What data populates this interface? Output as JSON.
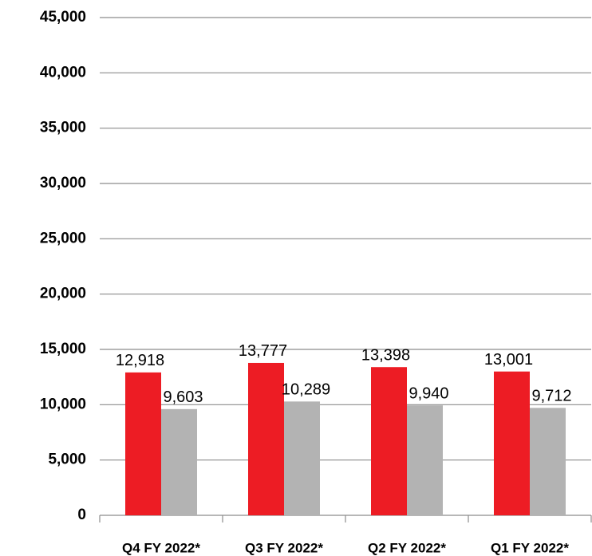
{
  "chart_data": {
    "type": "bar",
    "categories": [
      "Q4 FY 2022*",
      "Q3 FY 2022*",
      "Q2 FY 2022*",
      "Q1 FY 2022*"
    ],
    "series": [
      {
        "color": "#ed1c24",
        "values": [
          12918,
          13777,
          13398,
          13001
        ],
        "value_labels": [
          "12,918",
          "13,777",
          "13,398",
          "13,001"
        ]
      },
      {
        "color": "#b3b3b3",
        "values": [
          9603,
          10289,
          9940,
          9712
        ],
        "value_labels": [
          "9,603",
          "10,289",
          "9,940",
          "9,712"
        ]
      }
    ],
    "ylim": [
      0,
      45000
    ],
    "yticks": [
      0,
      {
        "value": 5000,
        "label": "5,000"
      },
      {
        "value": 10000,
        "label": "10,000"
      },
      {
        "value": 15000,
        "label": "15,000"
      },
      {
        "value": 20000,
        "label": "20,000"
      },
      {
        "value": 25000,
        "label": "25,000"
      },
      {
        "value": 30000,
        "label": "30,000"
      },
      {
        "value": 35000,
        "label": "35,000"
      },
      {
        "value": 40000,
        "label": "40,000"
      },
      {
        "value": 45000,
        "label": "45,000"
      }
    ],
    "grid": true
  }
}
